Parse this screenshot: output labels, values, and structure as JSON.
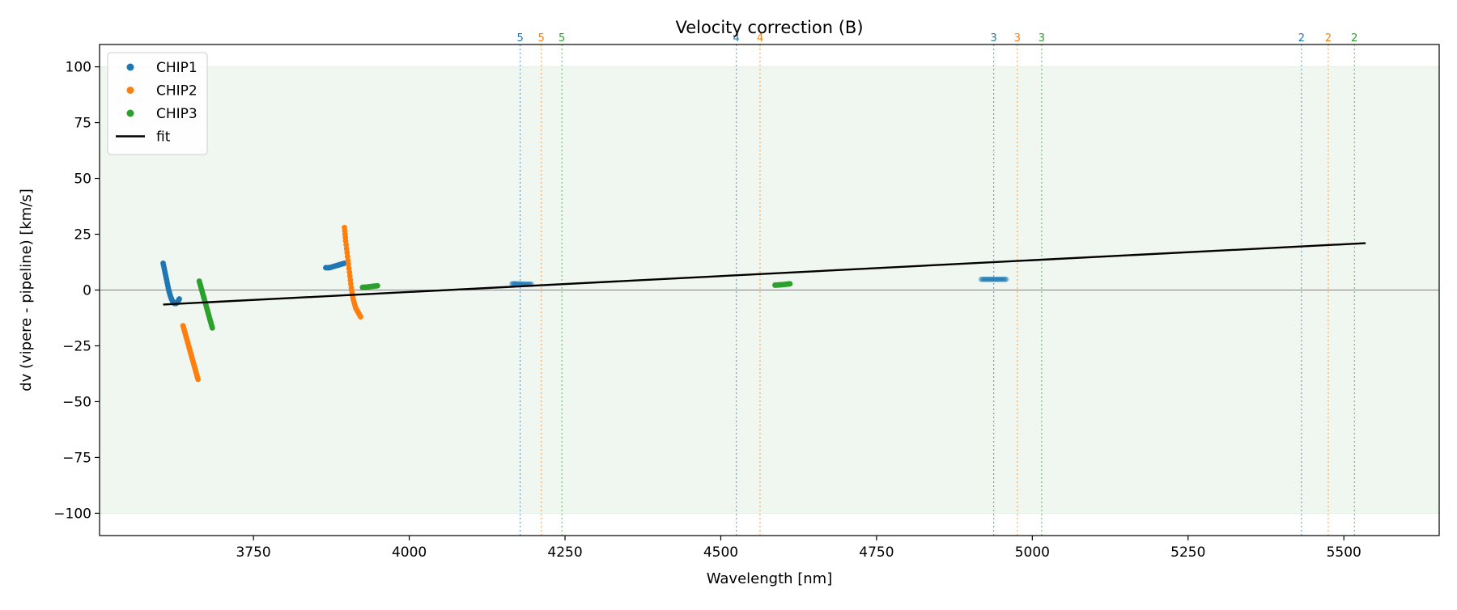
{
  "chart_data": {
    "type": "scatter",
    "title": "Velocity correction (B)",
    "xlabel": "Wavelength [nm]",
    "ylabel": "dv (vipere - pipeline) [km/s]",
    "xlim": [
      3503,
      5653
    ],
    "ylim": [
      -110,
      110
    ],
    "x_ticks": [
      3750,
      4000,
      4250,
      4500,
      4750,
      5000,
      5250,
      5500
    ],
    "y_ticks": [
      -100,
      -75,
      -50,
      -25,
      0,
      25,
      50,
      75,
      100
    ],
    "x_tick_labels": [
      "3750",
      "4000",
      "4250",
      "4500",
      "4750",
      "5000",
      "5250",
      "5500"
    ],
    "y_tick_labels": [
      "−100",
      "−75",
      "−50",
      "−25",
      "0",
      "25",
      "50",
      "75",
      "100"
    ],
    "grid": false,
    "legend_position": "top-left",
    "accepted_band": [
      -100,
      100
    ],
    "band_color": "#f0f7f0",
    "zero_line_color": "#808080",
    "series": [
      {
        "name": "CHIP1",
        "color": "#1f77b4",
        "segments": [
          {
            "points": [
              [
                3605,
                12
              ],
              [
                3608,
                8
              ],
              [
                3611,
                4
              ],
              [
                3614,
                0
              ],
              [
                3617,
                -3
              ],
              [
                3620,
                -5
              ],
              [
                3623,
                -6
              ],
              [
                3626,
                -6
              ],
              [
                3629,
                -5
              ],
              [
                3631,
                -4
              ]
            ]
          },
          {
            "points": [
              [
                3866,
                10
              ],
              [
                3872,
                10
              ],
              [
                3878,
                10.5
              ],
              [
                3884,
                11
              ],
              [
                3890,
                11.5
              ],
              [
                3896,
                12
              ]
            ]
          },
          {
            "points": [
              [
                4165,
                2.8
              ],
              [
                4172,
                2.8
              ],
              [
                4180,
                2.7
              ],
              [
                4188,
                2.6
              ],
              [
                4196,
                2.6
              ]
            ],
            "faded": true
          },
          {
            "points": [
              [
                4918,
                4.8
              ],
              [
                4926,
                4.8
              ],
              [
                4934,
                4.8
              ],
              [
                4942,
                4.8
              ],
              [
                4950,
                4.8
              ],
              [
                4958,
                4.8
              ]
            ],
            "faded": true
          }
        ]
      },
      {
        "name": "CHIP2",
        "color": "#ff7f0e",
        "segments": [
          {
            "points": [
              [
                3637,
                -16
              ],
              [
                3640,
                -19
              ],
              [
                3643,
                -22
              ],
              [
                3646,
                -25
              ],
              [
                3649,
                -28
              ],
              [
                3652,
                -31
              ],
              [
                3655,
                -34
              ],
              [
                3658,
                -37
              ],
              [
                3661,
                -40
              ]
            ]
          },
          {
            "points": [
              [
                3896,
                28
              ],
              [
                3898,
                22
              ],
              [
                3901,
                15
              ],
              [
                3904,
                8
              ],
              [
                3907,
                1
              ],
              [
                3910,
                -4
              ],
              [
                3914,
                -8
              ],
              [
                3918,
                -10
              ],
              [
                3922,
                -12
              ]
            ]
          }
        ]
      },
      {
        "name": "CHIP3",
        "color": "#2ca02c",
        "segments": [
          {
            "points": [
              [
                3663,
                4
              ],
              [
                3666,
                1
              ],
              [
                3669,
                -2
              ],
              [
                3672,
                -5
              ],
              [
                3675,
                -8
              ],
              [
                3678,
                -11
              ],
              [
                3681,
                -14
              ],
              [
                3684,
                -17
              ]
            ]
          },
          {
            "points": [
              [
                3925,
                1.2
              ],
              [
                3931,
                1.3
              ],
              [
                3937,
                1.5
              ],
              [
                3943,
                1.7
              ],
              [
                3949,
                1.9
              ]
            ]
          },
          {
            "points": [
              [
                4587,
                2.2
              ],
              [
                4593,
                2.3
              ],
              [
                4599,
                2.4
              ],
              [
                4605,
                2.6
              ],
              [
                4611,
                2.8
              ]
            ]
          }
        ]
      }
    ],
    "fit": {
      "name": "fit",
      "color": "#000000",
      "x": [
        3605,
        5535
      ],
      "y": [
        -6.5,
        21
      ]
    },
    "order_markers": [
      {
        "x": 4178,
        "label": "5",
        "color": "#1f77b4"
      },
      {
        "x": 4212,
        "label": "5",
        "color": "#ff7f0e"
      },
      {
        "x": 4245,
        "label": "5",
        "color": "#2ca02c"
      },
      {
        "x": 4525,
        "label": "4",
        "color": "#1f77b4"
      },
      {
        "x": 4563,
        "label": "4",
        "color": "#ff7f0e"
      },
      {
        "x": 4938,
        "label": "3",
        "color": "#1f77b4"
      },
      {
        "x": 4976,
        "label": "3",
        "color": "#ff7f0e"
      },
      {
        "x": 5015,
        "label": "3",
        "color": "#2ca02c"
      },
      {
        "x": 5432,
        "label": "2",
        "color": "#1f77b4"
      },
      {
        "x": 5475,
        "label": "2",
        "color": "#ff7f0e"
      },
      {
        "x": 5517,
        "label": "2",
        "color": "#2ca02c"
      }
    ]
  }
}
